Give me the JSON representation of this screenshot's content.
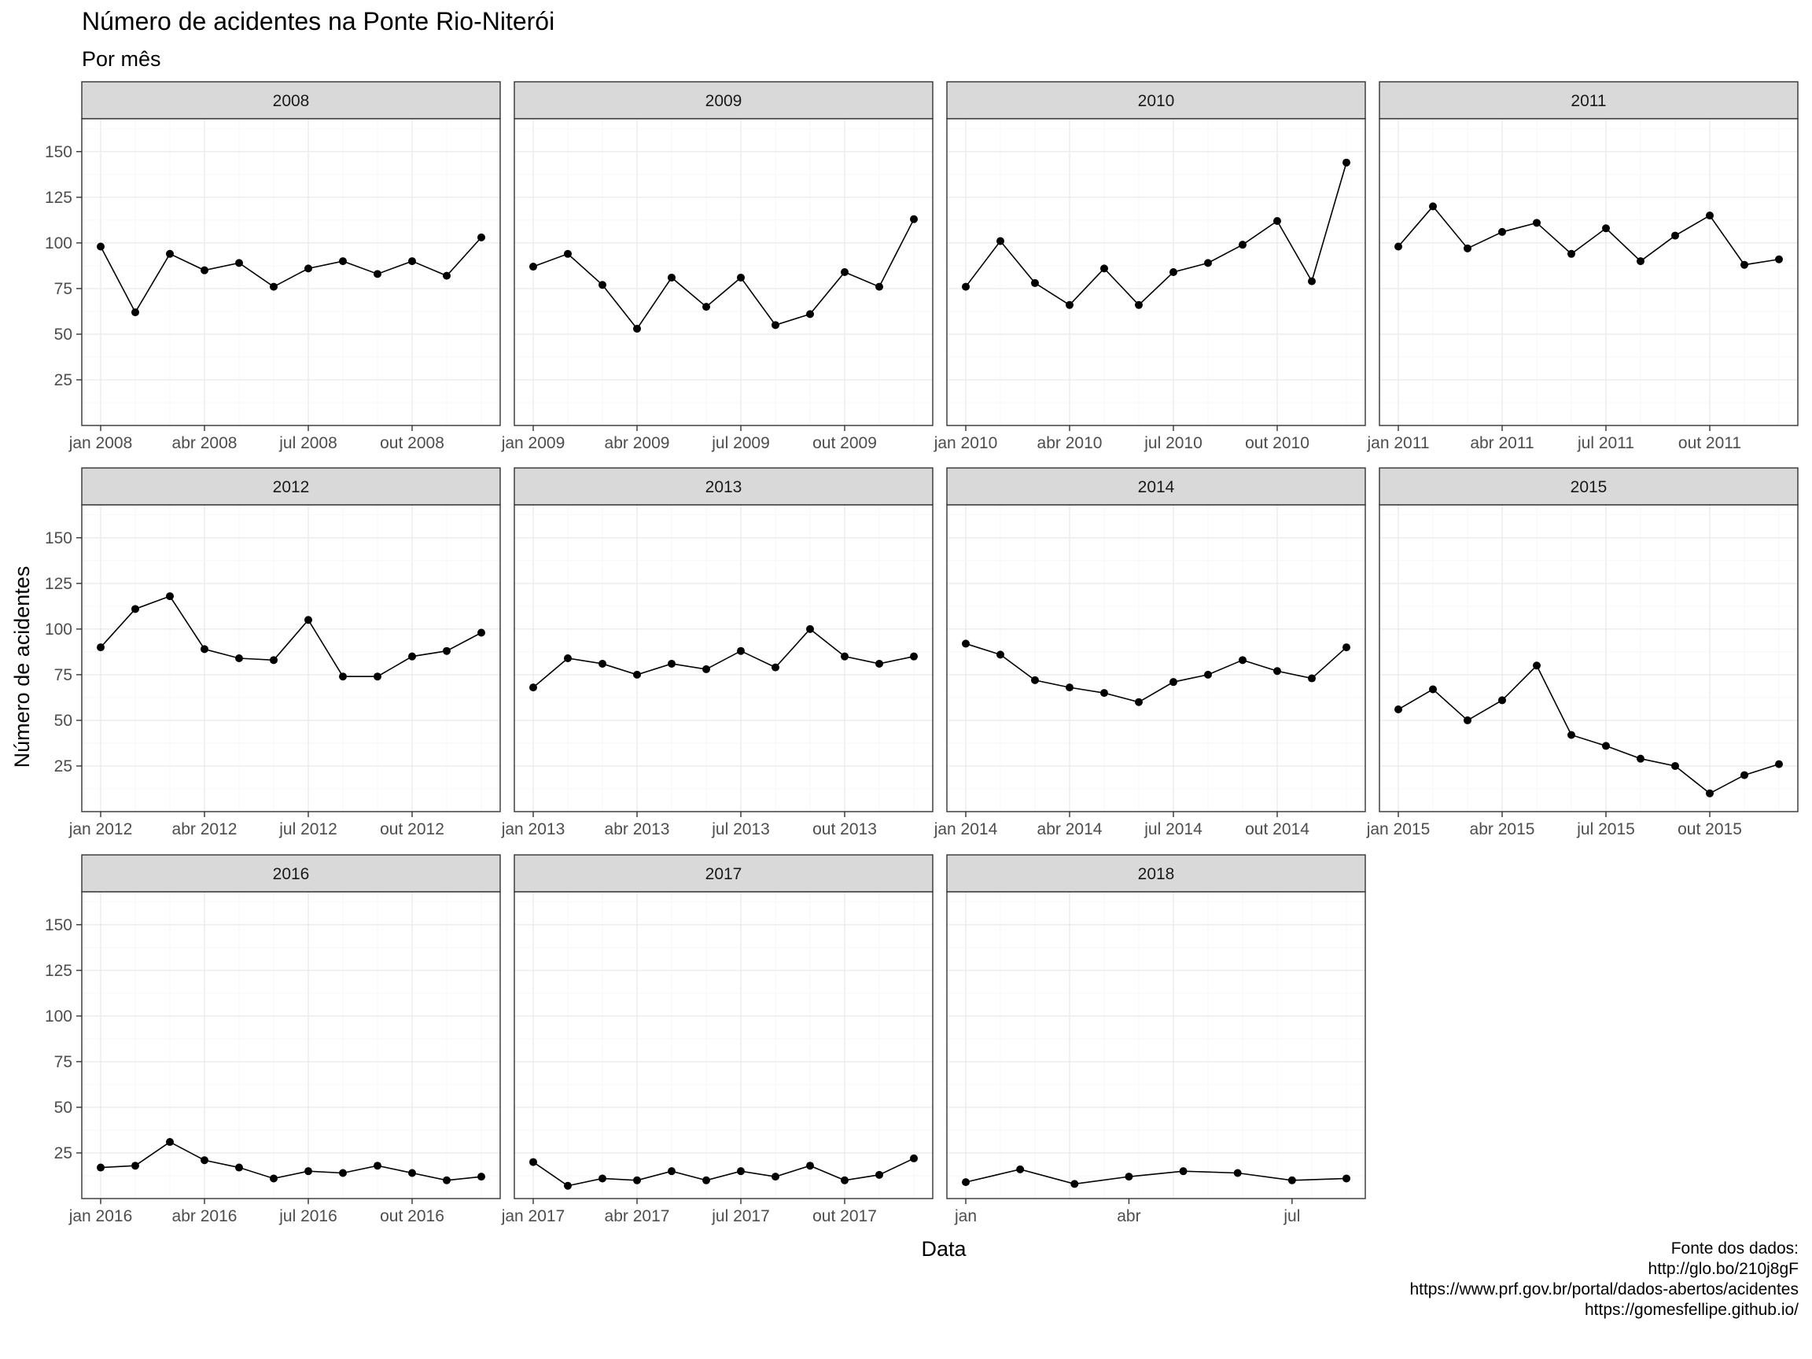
{
  "chart_data": {
    "type": "line",
    "title": "Número de acidentes na Ponte Rio-Niterói",
    "subtitle": "Por mês",
    "xlabel": "Data",
    "ylabel": "Número de acidentes",
    "ylim": [
      0,
      168
    ],
    "yticks": [
      25,
      50,
      75,
      100,
      125,
      150
    ],
    "grid": true,
    "caption": [
      "Fonte dos dados:",
      "http://glo.bo/210j8gF",
      "https://www.prf.gov.br/portal/dados-abertos/acidentes",
      "https://gomesfellipe.github.io/"
    ],
    "facets": [
      {
        "label": "2008",
        "xticks": [
          "jan 2008",
          "abr 2008",
          "jul 2008",
          "out 2008"
        ],
        "x": [
          "2008-01",
          "2008-02",
          "2008-03",
          "2008-04",
          "2008-05",
          "2008-06",
          "2008-07",
          "2008-08",
          "2008-09",
          "2008-10",
          "2008-11",
          "2008-12"
        ],
        "values": [
          98,
          62,
          94,
          85,
          89,
          76,
          86,
          90,
          83,
          90,
          82,
          103
        ]
      },
      {
        "label": "2009",
        "xticks": [
          "jan 2009",
          "abr 2009",
          "jul 2009",
          "out 2009"
        ],
        "x": [
          "2009-01",
          "2009-02",
          "2009-03",
          "2009-04",
          "2009-05",
          "2009-06",
          "2009-07",
          "2009-08",
          "2009-09",
          "2009-10",
          "2009-11",
          "2009-12"
        ],
        "values": [
          87,
          94,
          77,
          53,
          81,
          65,
          81,
          55,
          61,
          84,
          76,
          113
        ]
      },
      {
        "label": "2010",
        "xticks": [
          "jan 2010",
          "abr 2010",
          "jul 2010",
          "out 2010"
        ],
        "x": [
          "2010-01",
          "2010-02",
          "2010-03",
          "2010-04",
          "2010-05",
          "2010-06",
          "2010-07",
          "2010-08",
          "2010-09",
          "2010-10",
          "2010-11",
          "2010-12"
        ],
        "values": [
          76,
          101,
          78,
          66,
          86,
          66,
          84,
          89,
          99,
          112,
          79,
          144
        ]
      },
      {
        "label": "2011",
        "xticks": [
          "jan 2011",
          "abr 2011",
          "jul 2011",
          "out 2011"
        ],
        "x": [
          "2011-01",
          "2011-02",
          "2011-03",
          "2011-04",
          "2011-05",
          "2011-06",
          "2011-07",
          "2011-08",
          "2011-09",
          "2011-10",
          "2011-11",
          "2011-12"
        ],
        "values": [
          98,
          120,
          97,
          106,
          111,
          94,
          108,
          90,
          104,
          115,
          88,
          91
        ]
      },
      {
        "label": "2012",
        "xticks": [
          "jan 2012",
          "abr 2012",
          "jul 2012",
          "out 2012"
        ],
        "x": [
          "2012-01",
          "2012-02",
          "2012-03",
          "2012-04",
          "2012-05",
          "2012-06",
          "2012-07",
          "2012-08",
          "2012-09",
          "2012-10",
          "2012-11",
          "2012-12"
        ],
        "values": [
          90,
          111,
          118,
          89,
          84,
          83,
          105,
          74,
          74,
          85,
          88,
          98
        ]
      },
      {
        "label": "2013",
        "xticks": [
          "jan 2013",
          "abr 2013",
          "jul 2013",
          "out 2013"
        ],
        "x": [
          "2013-01",
          "2013-02",
          "2013-03",
          "2013-04",
          "2013-05",
          "2013-06",
          "2013-07",
          "2013-08",
          "2013-09",
          "2013-10",
          "2013-11",
          "2013-12"
        ],
        "values": [
          68,
          84,
          81,
          75,
          81,
          78,
          88,
          79,
          100,
          85,
          81,
          85
        ]
      },
      {
        "label": "2014",
        "xticks": [
          "jan 2014",
          "abr 2014",
          "jul 2014",
          "out 2014"
        ],
        "x": [
          "2014-01",
          "2014-02",
          "2014-03",
          "2014-04",
          "2014-05",
          "2014-06",
          "2014-07",
          "2014-08",
          "2014-09",
          "2014-10",
          "2014-11",
          "2014-12"
        ],
        "values": [
          92,
          86,
          72,
          68,
          65,
          60,
          71,
          75,
          83,
          77,
          73,
          90
        ]
      },
      {
        "label": "2015",
        "xticks": [
          "jan 2015",
          "abr 2015",
          "jul 2015",
          "out 2015"
        ],
        "x": [
          "2015-01",
          "2015-02",
          "2015-03",
          "2015-04",
          "2015-05",
          "2015-06",
          "2015-07",
          "2015-08",
          "2015-09",
          "2015-10",
          "2015-11",
          "2015-12"
        ],
        "values": [
          56,
          67,
          50,
          61,
          80,
          42,
          36,
          29,
          25,
          10,
          20,
          26
        ]
      },
      {
        "label": "2016",
        "xticks": [
          "jan 2016",
          "abr 2016",
          "jul 2016",
          "out 2016"
        ],
        "x": [
          "2016-01",
          "2016-02",
          "2016-03",
          "2016-04",
          "2016-05",
          "2016-06",
          "2016-07",
          "2016-08",
          "2016-09",
          "2016-10",
          "2016-11",
          "2016-12"
        ],
        "values": [
          17,
          18,
          31,
          21,
          17,
          11,
          15,
          14,
          18,
          14,
          10,
          12
        ]
      },
      {
        "label": "2017",
        "xticks": [
          "jan 2017",
          "abr 2017",
          "jul 2017",
          "out 2017"
        ],
        "x": [
          "2017-01",
          "2017-02",
          "2017-03",
          "2017-04",
          "2017-05",
          "2017-06",
          "2017-07",
          "2017-08",
          "2017-09",
          "2017-10",
          "2017-11",
          "2017-12"
        ],
        "values": [
          20,
          7,
          11,
          10,
          15,
          10,
          15,
          12,
          18,
          10,
          13,
          22
        ]
      },
      {
        "label": "2018",
        "xticks": [
          "jan",
          "abr",
          "jul"
        ],
        "x": [
          "2018-01",
          "2018-02",
          "2018-03",
          "2018-04",
          "2018-05",
          "2018-06",
          "2018-07",
          "2018-08"
        ],
        "values": [
          9,
          16,
          8,
          12,
          15,
          14,
          10,
          11
        ]
      }
    ]
  }
}
